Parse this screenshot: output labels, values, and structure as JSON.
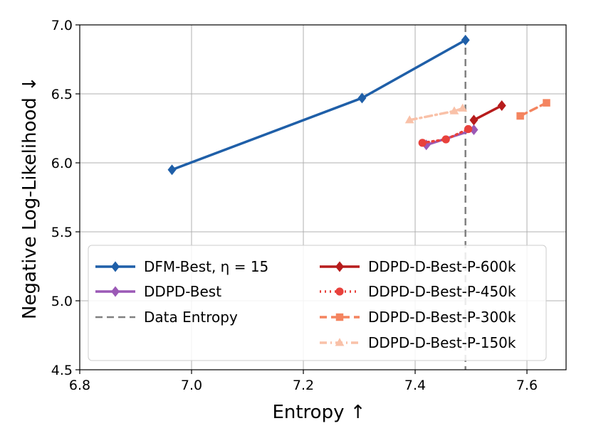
{
  "chart_data": {
    "type": "line",
    "xlabel": "Entropy ↑",
    "ylabel": "Negative Log-Likelihood ↓",
    "xlim": [
      6.8,
      7.67
    ],
    "ylim": [
      4.5,
      7.0
    ],
    "xticks": [
      "6.8",
      "7.0",
      "7.2",
      "7.4",
      "7.6"
    ],
    "yticks": [
      "4.5",
      "5.0",
      "5.5",
      "6.0",
      "6.5",
      "7.0"
    ],
    "grid": true,
    "legend_position": "bottom-center",
    "series": [
      {
        "name": "DFM-Best, η = 15",
        "color": "#1f5fa8",
        "marker": "diamond",
        "linestyle": "solid",
        "x": [
          6.965,
          7.305,
          7.49
        ],
        "y": [
          5.95,
          6.47,
          6.89
        ]
      },
      {
        "name": "DDPD-Best",
        "color": "#9b59b6",
        "marker": "diamond",
        "linestyle": "solid",
        "x": [
          7.42,
          7.505
        ],
        "y": [
          6.13,
          6.24
        ]
      },
      {
        "name": "DDPD-D-Best-P-600k",
        "color": "#b71c1c",
        "marker": "diamond",
        "linestyle": "solid",
        "x": [
          7.505,
          7.555
        ],
        "y": [
          6.31,
          6.415
        ]
      },
      {
        "name": "DDPD-D-Best-P-450k",
        "color": "#e8413c",
        "marker": "circle",
        "linestyle": "dotted",
        "x": [
          7.413,
          7.455,
          7.495
        ],
        "y": [
          6.145,
          6.17,
          6.245
        ]
      },
      {
        "name": "DDPD-D-Best-P-300k",
        "color": "#f4845f",
        "marker": "square",
        "linestyle": "dashed",
        "x": [
          7.588,
          7.635
        ],
        "y": [
          6.34,
          6.435
        ]
      },
      {
        "name": "DDPD-D-Best-P-150k",
        "color": "#f9c1a8",
        "marker": "triangle",
        "linestyle": "dashdot",
        "x": [
          7.39,
          7.47,
          7.485
        ],
        "y": [
          6.31,
          6.375,
          6.395
        ]
      }
    ],
    "reference_lines": [
      {
        "name": "Data Entropy",
        "orientation": "vertical",
        "x": 7.49,
        "color": "#808080",
        "linestyle": "dashed"
      }
    ]
  }
}
